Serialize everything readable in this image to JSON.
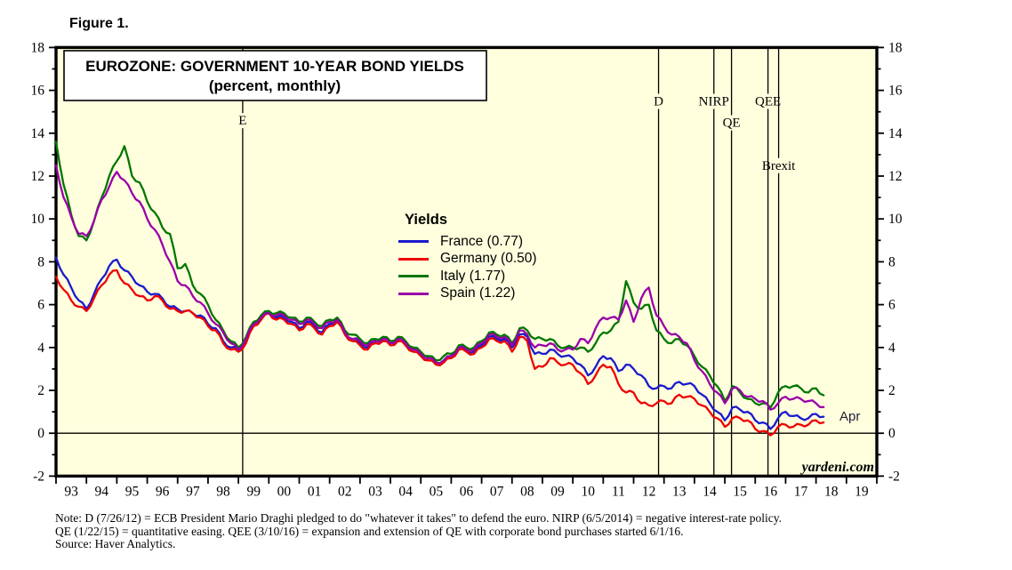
{
  "figure_label": "Figure 1.",
  "chart": {
    "title_line1": "EUROZONE: GOVERNMENT 10-YEAR BOND YIELDS",
    "title_line2": "(percent, monthly)",
    "legend_title": "Yields",
    "watermark": "yardeni.com",
    "end_label": "Apr",
    "plot_bg_color": "#FFFFDE",
    "frame_color": "#000000"
  },
  "chart_data": {
    "type": "line",
    "title": "EUROZONE: GOVERNMENT 10-YEAR BOND YIELDS (percent, monthly)",
    "ylabel": "percent",
    "ylim": [
      -2,
      18
    ],
    "y_tick_step": 2,
    "y_minor_step": 1,
    "grid": "zero-line-only",
    "zero_line": true,
    "legend_position": "center-left",
    "x_start_year": 1993.0,
    "x_step_years": 0.25,
    "x_axis_year_labels": [
      "93",
      "94",
      "95",
      "96",
      "97",
      "98",
      "99",
      "00",
      "01",
      "02",
      "03",
      "04",
      "05",
      "06",
      "07",
      "08",
      "09",
      "10",
      "11",
      "12",
      "13",
      "14",
      "15",
      "16",
      "17",
      "18",
      "19"
    ],
    "last_point_label": "Apr",
    "series": [
      {
        "name": "France",
        "latest": "0.77",
        "color": "#1A1ACD",
        "values": [
          8.2,
          7.4,
          6.8,
          6.2,
          5.8,
          6.5,
          7.2,
          7.8,
          8.1,
          7.6,
          7.3,
          6.9,
          6.6,
          6.5,
          6.3,
          5.9,
          5.8,
          5.7,
          5.6,
          5.5,
          5.1,
          4.9,
          4.3,
          4.0,
          3.9,
          4.3,
          5.1,
          5.4,
          5.7,
          5.4,
          5.4,
          5.2,
          4.9,
          5.2,
          5.0,
          4.7,
          5.1,
          5.3,
          4.7,
          4.4,
          4.2,
          4.0,
          4.3,
          4.4,
          4.2,
          4.4,
          4.2,
          3.9,
          3.7,
          3.5,
          3.3,
          3.4,
          3.6,
          4.0,
          3.9,
          3.8,
          4.1,
          4.5,
          4.4,
          4.4,
          4.0,
          4.6,
          4.5,
          3.7,
          3.7,
          3.9,
          3.7,
          3.6,
          3.5,
          3.2,
          2.7,
          3.1,
          3.6,
          3.5,
          2.9,
          3.2,
          3.0,
          2.7,
          2.2,
          2.1,
          2.2,
          2.1,
          2.4,
          2.3,
          2.2,
          1.8,
          1.4,
          1.0,
          0.6,
          1.2,
          1.1,
          1.0,
          0.6,
          0.5,
          0.2,
          0.7,
          1.0,
          0.8,
          0.7,
          0.7,
          0.9,
          0.77
        ]
      },
      {
        "name": "Germany",
        "latest": "0.50",
        "color": "#EE0000",
        "values": [
          7.3,
          6.7,
          6.2,
          5.9,
          5.7,
          6.3,
          6.9,
          7.4,
          7.6,
          7.0,
          6.7,
          6.4,
          6.2,
          6.4,
          6.2,
          5.8,
          5.7,
          5.7,
          5.6,
          5.4,
          5.0,
          4.8,
          4.2,
          3.9,
          3.8,
          4.2,
          5.0,
          5.3,
          5.6,
          5.3,
          5.3,
          5.1,
          4.8,
          5.1,
          4.9,
          4.6,
          5.0,
          5.2,
          4.6,
          4.3,
          4.1,
          3.9,
          4.2,
          4.3,
          4.1,
          4.3,
          4.1,
          3.8,
          3.6,
          3.4,
          3.2,
          3.3,
          3.5,
          3.9,
          3.8,
          3.7,
          4.0,
          4.4,
          4.3,
          4.3,
          3.8,
          4.5,
          4.3,
          3.0,
          3.1,
          3.5,
          3.3,
          3.2,
          3.2,
          2.8,
          2.3,
          2.7,
          3.2,
          3.1,
          2.3,
          1.9,
          1.9,
          1.4,
          1.3,
          1.4,
          1.5,
          1.4,
          1.8,
          1.7,
          1.6,
          1.3,
          1.0,
          0.7,
          0.3,
          0.7,
          0.7,
          0.6,
          0.2,
          0.1,
          -0.1,
          0.3,
          0.4,
          0.3,
          0.4,
          0.4,
          0.6,
          0.5
        ]
      },
      {
        "name": "Italy",
        "latest": "1.77",
        "color": "#007700",
        "values": [
          13.6,
          11.6,
          10.2,
          9.2,
          9.0,
          9.9,
          11.0,
          12.0,
          12.7,
          13.4,
          12.0,
          11.7,
          10.8,
          10.3,
          9.6,
          9.3,
          7.7,
          7.9,
          6.9,
          6.5,
          6.0,
          5.3,
          4.8,
          4.3,
          4.0,
          4.5,
          5.2,
          5.5,
          5.7,
          5.6,
          5.6,
          5.4,
          5.2,
          5.4,
          5.2,
          5.0,
          5.3,
          5.4,
          4.8,
          4.6,
          4.4,
          4.2,
          4.4,
          4.5,
          4.3,
          4.5,
          4.3,
          4.0,
          3.8,
          3.6,
          3.4,
          3.6,
          3.7,
          4.1,
          4.0,
          4.0,
          4.3,
          4.7,
          4.6,
          4.6,
          4.2,
          4.9,
          4.8,
          4.4,
          4.4,
          4.4,
          4.1,
          4.0,
          4.0,
          4.0,
          3.8,
          4.2,
          4.7,
          4.8,
          5.2,
          7.1,
          6.1,
          5.8,
          6.0,
          4.8,
          4.4,
          4.2,
          4.4,
          4.1,
          3.6,
          3.1,
          2.7,
          2.2,
          1.5,
          2.2,
          1.9,
          1.6,
          1.4,
          1.4,
          1.2,
          1.9,
          2.2,
          2.2,
          2.1,
          1.9,
          2.1,
          1.77
        ]
      },
      {
        "name": "Spain",
        "latest": "1.22",
        "color": "#9900A8",
        "values": [
          12.5,
          11.0,
          10.1,
          9.3,
          9.2,
          9.9,
          10.9,
          11.5,
          12.2,
          11.8,
          11.2,
          10.8,
          10.0,
          9.5,
          8.8,
          8.0,
          7.1,
          6.9,
          6.4,
          6.1,
          5.6,
          5.1,
          4.7,
          4.2,
          3.9,
          4.4,
          5.1,
          5.4,
          5.6,
          5.5,
          5.5,
          5.3,
          5.1,
          5.3,
          5.1,
          4.9,
          5.2,
          5.3,
          4.7,
          4.4,
          4.3,
          4.1,
          4.3,
          4.4,
          4.2,
          4.4,
          4.2,
          3.9,
          3.7,
          3.5,
          3.3,
          3.4,
          3.6,
          4.0,
          3.9,
          3.9,
          4.2,
          4.6,
          4.5,
          4.5,
          4.1,
          4.8,
          4.6,
          4.0,
          4.1,
          4.2,
          3.9,
          3.9,
          3.9,
          4.4,
          4.2,
          4.9,
          5.4,
          5.4,
          5.3,
          6.2,
          5.2,
          6.3,
          6.8,
          5.5,
          5.0,
          4.6,
          4.5,
          4.2,
          3.4,
          2.9,
          2.3,
          1.9,
          1.4,
          2.1,
          2.0,
          1.7,
          1.6,
          1.5,
          1.1,
          1.4,
          1.7,
          1.6,
          1.6,
          1.5,
          1.4,
          1.22
        ]
      }
    ],
    "events": [
      {
        "label": "E",
        "x_year": 1999.14,
        "label_value": 14.4
      },
      {
        "label": "D",
        "x_year": 2012.82,
        "label_value": 15.3
      },
      {
        "label": "NIRP",
        "x_year": 2014.64,
        "label_value": 15.3
      },
      {
        "label": "QE",
        "x_year": 2015.22,
        "label_value": 14.3
      },
      {
        "label": "QEE",
        "x_year": 2016.42,
        "label_value": 15.3
      },
      {
        "label": "Brexit",
        "x_year": 2016.77,
        "label_value": 12.3
      }
    ]
  },
  "notes": {
    "line1": "Note: D (7/26/12) = ECB President Mario Draghi pledged to do \"whatever it takes\" to defend the euro. NIRP (6/5/2014) = negative interest-rate policy.",
    "line2": "QE (1/22/15) = quantitative easing. QEE (3/10/16) = expansion and extension of QE with corporate bond purchases started 6/1/16.",
    "line3": "Source: Haver Analytics."
  }
}
